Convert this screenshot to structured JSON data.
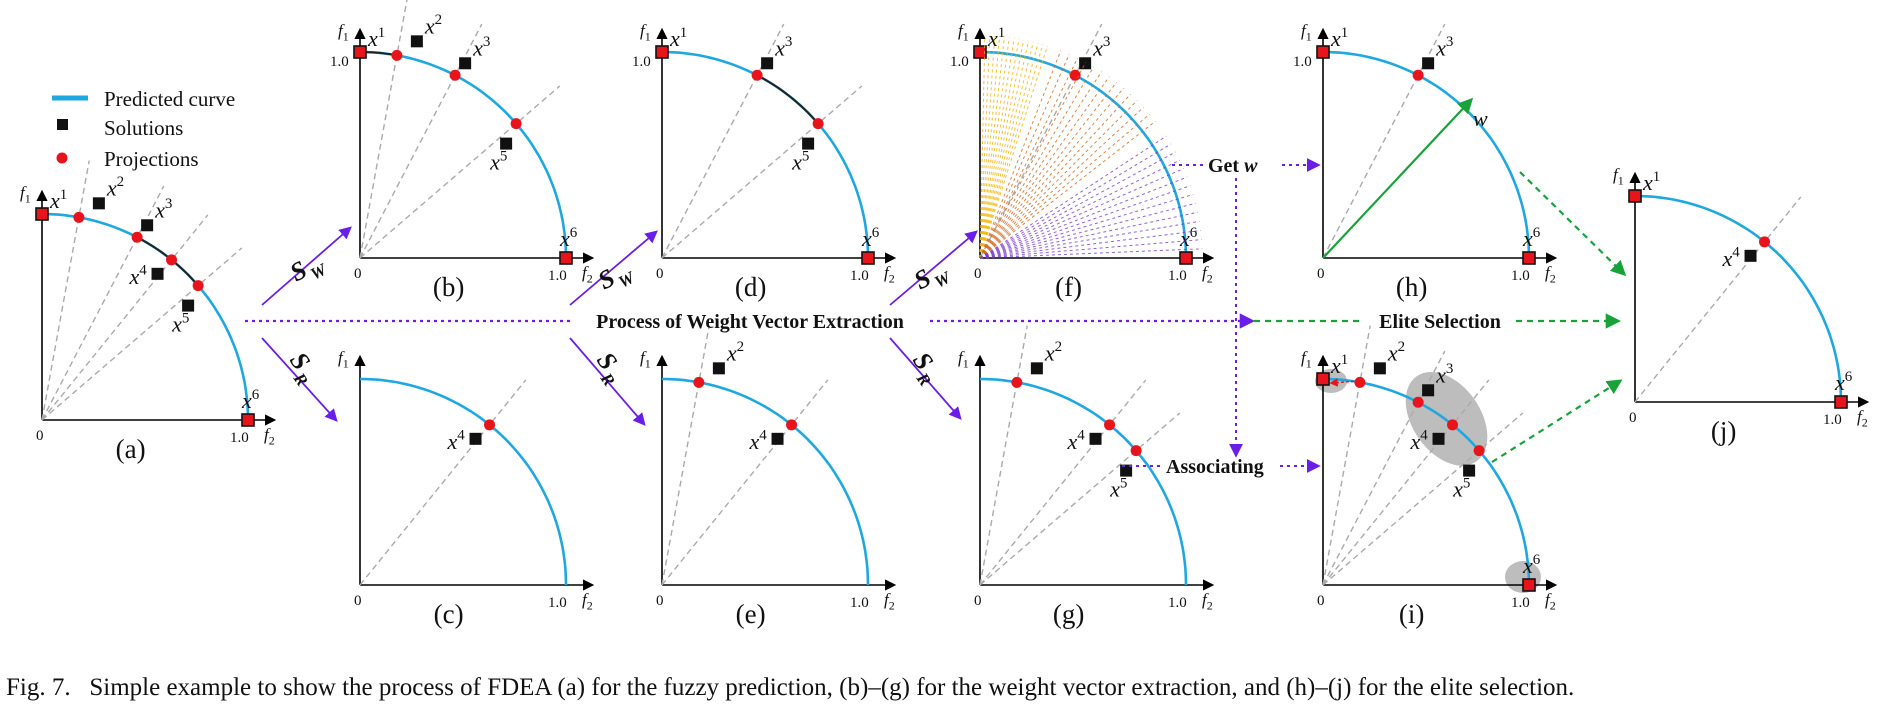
{
  "colors": {
    "curve": "#1fa7e0",
    "solution": "#111111",
    "projection": "#e8141c",
    "purple_arrow": "#6a1ee8",
    "green_arrow": "#1aa23a",
    "guide": "#aaaaaa"
  },
  "legend": {
    "predicted_curve": "Predicted curve",
    "solutions": "Solutions",
    "projections": "Projections"
  },
  "axis": {
    "f1": "f",
    "f1_sub": "1",
    "f2": "f",
    "f2_sub": "2",
    "one": "1.0",
    "zero": "0"
  },
  "point_labels": {
    "x1": "x",
    "x1_sup": "1",
    "x2": "x",
    "x2_sup": "2",
    "x3": "x",
    "x3_sup": "3",
    "x4": "x",
    "x4_sup": "4",
    "x5": "x",
    "x5_sup": "5",
    "x6": "x",
    "x6_sup": "6",
    "w": "w"
  },
  "panels": {
    "a": "(a)",
    "b": "(b)",
    "c": "(c)",
    "d": "(d)",
    "e": "(e)",
    "f": "(f)",
    "g": "(g)",
    "h": "(h)",
    "i": "(i)",
    "j": "(j)"
  },
  "flow_labels": {
    "sw_s": "S",
    "sw_sub": "W",
    "sr_s": "S",
    "sr_sub": "R",
    "process": "Process of Weight Vector Extraction",
    "elite": "Elite Selection",
    "get_w": "Get",
    "get_w_var": "w",
    "associating": "Associating"
  },
  "caption": {
    "prefix": "Fig. 7.",
    "text": "Simple example to show the process of FDEA (a) for the fuzzy prediction, (b)–(g) for the weight vector extraction, and (h)–(j) for the elite selection."
  }
}
